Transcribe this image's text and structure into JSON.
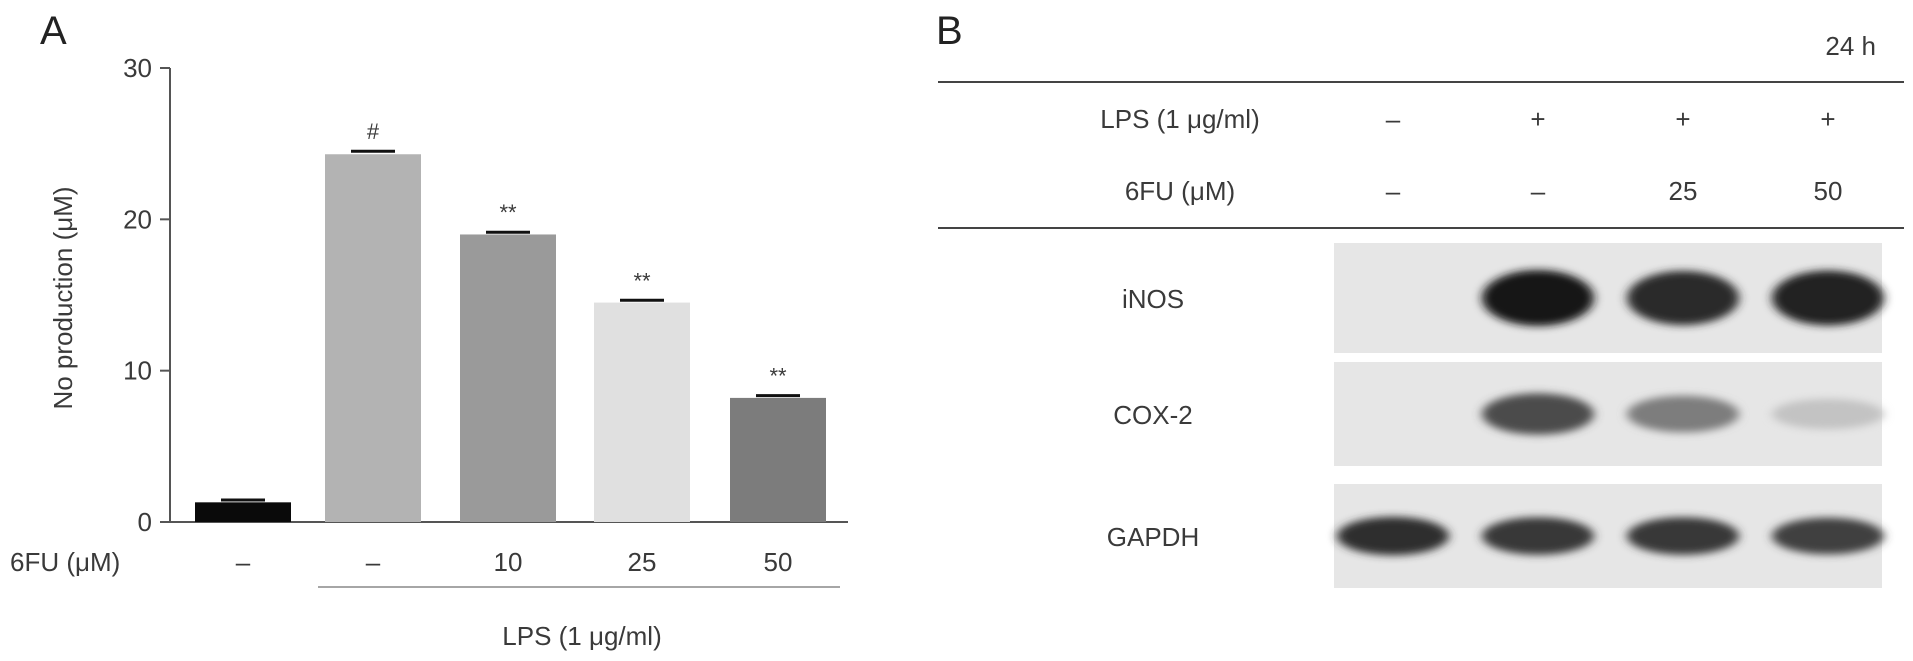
{
  "panel_a": {
    "label": "A",
    "chart_data": {
      "type": "bar",
      "ylabel": "No production (μM)",
      "xlabel": "",
      "ylim": [
        0,
        30
      ],
      "yticks": [
        0,
        10,
        20,
        30
      ],
      "categories": [
        "–",
        "–",
        "10",
        "25",
        "50"
      ],
      "values": [
        1.3,
        24.3,
        19.0,
        14.5,
        8.2
      ],
      "errors": [
        0.15,
        0.2,
        0.15,
        0.15,
        0.15
      ],
      "bar_colors": [
        "#0a0a0a",
        "#b3b3b3",
        "#9a9a9a",
        "#e0e0e0",
        "#7c7c7c"
      ],
      "annotations": [
        "",
        "#",
        "**",
        "**",
        "**"
      ],
      "row_label": "6FU (μM)",
      "group_label": "LPS (1 μg/ml)"
    }
  },
  "panel_b": {
    "label": "B",
    "time_label": "24 h",
    "conditions": [
      {
        "label": "LPS (1 μg/ml)",
        "values": [
          "–",
          "+",
          "+",
          "+"
        ]
      },
      {
        "label": "6FU (μM)",
        "values": [
          "–",
          "–",
          "25",
          "50"
        ]
      }
    ],
    "blots": [
      {
        "label": "iNOS",
        "intensity": [
          0.0,
          1.0,
          0.92,
          0.95
        ]
      },
      {
        "label": "COX-2",
        "intensity": [
          0.0,
          0.75,
          0.5,
          0.15
        ]
      },
      {
        "label": "GAPDH",
        "intensity": [
          0.9,
          0.85,
          0.85,
          0.8
        ]
      }
    ]
  }
}
